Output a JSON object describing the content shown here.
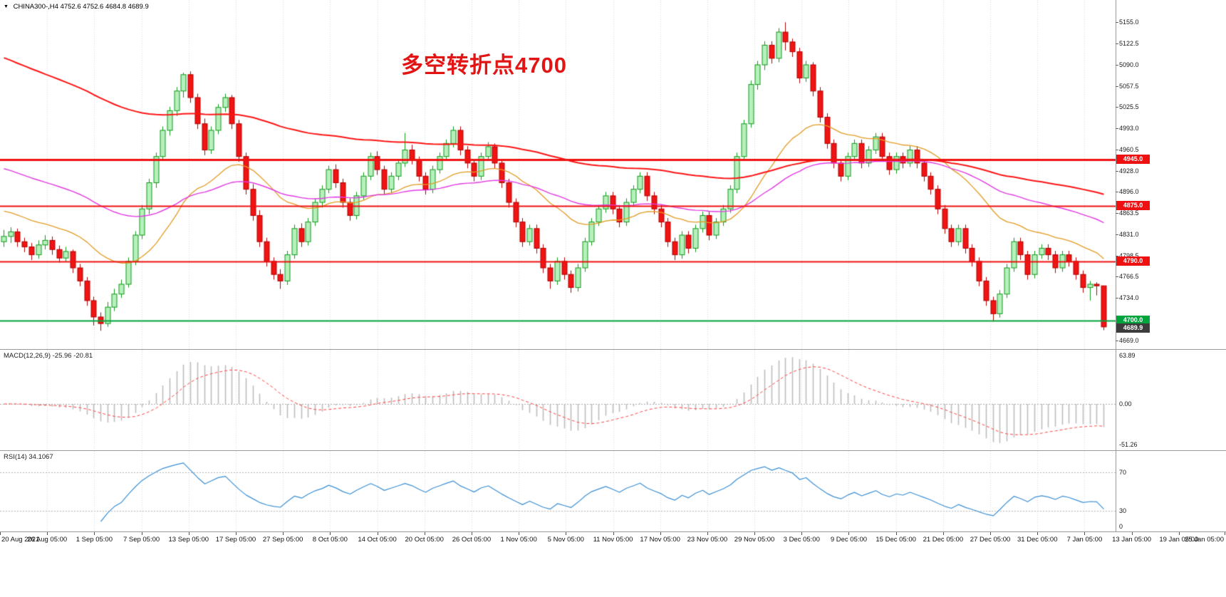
{
  "header": {
    "dropdown_icon": "▼",
    "symbol": "CHINA300-,H4",
    "ohlc": "4752.6 4752.6 4684.8 4689.9"
  },
  "annotation": {
    "text": "多空转折点4700",
    "color": "#e21414"
  },
  "colors": {
    "bull_fill": "#b6f0bd",
    "bull_border": "#0f9918",
    "bear_fill": "#f01414",
    "bear_border": "#b00000",
    "grid": "#d9d9d9",
    "macd_hist": "#bdbdbd",
    "macd_signal": "#ff4040",
    "rsi_line": "#3b8fd4",
    "badge_current_bg": "#3c3c3c"
  },
  "macd": {
    "label": "MACD(12,26,9) -25.96 -20.81",
    "value": -25.96,
    "signal_value": -20.81,
    "fast": 12,
    "slow": 26,
    "signal": 9,
    "levels": [
      "63.89",
      "0.00",
      "-51.26"
    ]
  },
  "rsi": {
    "label": "RSI(14) 34.1067",
    "value": 34.1067,
    "period": 14,
    "levels": [
      "70",
      "30",
      "0"
    ]
  },
  "chart_data": {
    "type": "candlestick",
    "symbol": "CHINA300-",
    "timeframe": "H4",
    "title": "多空转折点4700",
    "ylim": [
      4656,
      5189
    ],
    "y_ticks": [
      "5155.0",
      "5122.5",
      "5090.0",
      "5057.5",
      "5025.5",
      "4993.0",
      "4960.5",
      "4928.0",
      "4896.0",
      "4863.5",
      "4831.0",
      "4798.5",
      "4766.5",
      "4734.0",
      "4669.0"
    ],
    "x_labels": [
      "20 Aug 2021",
      "26 Aug 05:00",
      "1 Sep 05:00",
      "7 Sep 05:00",
      "13 Sep 05:00",
      "17 Sep 05:00",
      "27 Sep 05:00",
      "8 Oct 05:00",
      "14 Oct 05:00",
      "20 Oct 05:00",
      "26 Oct 05:00",
      "1 Nov 05:00",
      "5 Nov 05:00",
      "11 Nov 05:00",
      "17 Nov 05:00",
      "23 Nov 05:00",
      "29 Nov 05:00",
      "3 Dec 05:00",
      "9 Dec 05:00",
      "15 Dec 05:00",
      "21 Dec 05:00",
      "27 Dec 05:00",
      "31 Dec 05:00",
      "7 Jan 05:00",
      "13 Jan 05:00",
      "19 Jan 05:00",
      "25 Jan 05:00"
    ],
    "current": {
      "label": "4689.9",
      "value": 4689.9
    },
    "last_candle": {
      "open": 4752.6,
      "high": 4752.6,
      "low": 4684.8,
      "close": 4689.9
    },
    "hlines": [
      {
        "price": 4945.0,
        "label": "4945.0",
        "color": "#ee1111",
        "width": 3
      },
      {
        "price": 4875.0,
        "label": "4875.0",
        "color": "#ee1111",
        "width": 2
      },
      {
        "price": 4790.0,
        "label": "4790.0",
        "color": "#ee1111",
        "width": 2
      },
      {
        "price": 4700.0,
        "label": "4700.0",
        "color": "#00a43c",
        "width": 2
      }
    ],
    "overlays": [
      {
        "name": "ma-fast",
        "color": "#e39b23",
        "period": 24,
        "seed": 4870,
        "width": 1.3
      },
      {
        "name": "ma-mid",
        "color": "#e23ae2",
        "period": 60,
        "seed": 4935,
        "width": 1.4
      },
      {
        "name": "ma-slow",
        "color": "#ff1414",
        "period": 130,
        "seed": 5105,
        "width": 2
      }
    ],
    "candles": [
      [
        4820,
        4838,
        4812,
        4828
      ],
      [
        4828,
        4842,
        4818,
        4835
      ],
      [
        4835,
        4840,
        4812,
        4820
      ],
      [
        4820,
        4826,
        4804,
        4812
      ],
      [
        4812,
        4818,
        4792,
        4800
      ],
      [
        4800,
        4822,
        4794,
        4815
      ],
      [
        4815,
        4830,
        4808,
        4822
      ],
      [
        4822,
        4828,
        4800,
        4808
      ],
      [
        4808,
        4814,
        4788,
        4795
      ],
      [
        4795,
        4812,
        4789,
        4805
      ],
      [
        4805,
        4808,
        4772,
        4780
      ],
      [
        4780,
        4786,
        4752,
        4760
      ],
      [
        4760,
        4766,
        4722,
        4730
      ],
      [
        4730,
        4736,
        4692,
        4705
      ],
      [
        4705,
        4712,
        4684,
        4695
      ],
      [
        4695,
        4728,
        4690,
        4720
      ],
      [
        4720,
        4748,
        4714,
        4740
      ],
      [
        4740,
        4762,
        4734,
        4755
      ],
      [
        4755,
        4796,
        4750,
        4790
      ],
      [
        4790,
        4836,
        4784,
        4830
      ],
      [
        4830,
        4876,
        4824,
        4870
      ],
      [
        4870,
        4916,
        4862,
        4910
      ],
      [
        4910,
        4956,
        4902,
        4950
      ],
      [
        4950,
        4996,
        4944,
        4990
      ],
      [
        4990,
        5026,
        4982,
        5020
      ],
      [
        5020,
        5056,
        5012,
        5050
      ],
      [
        5050,
        5078,
        5040,
        5075
      ],
      [
        5075,
        5080,
        5032,
        5040
      ],
      [
        5040,
        5046,
        4992,
        5000
      ],
      [
        5000,
        5008,
        4952,
        4960
      ],
      [
        4960,
        4996,
        4954,
        4990
      ],
      [
        4990,
        5030,
        4984,
        5025
      ],
      [
        5025,
        5046,
        5018,
        5040
      ],
      [
        5040,
        5044,
        4992,
        5000
      ],
      [
        5000,
        5006,
        4942,
        4950
      ],
      [
        4950,
        4956,
        4892,
        4900
      ],
      [
        4900,
        4908,
        4852,
        4860
      ],
      [
        4860,
        4868,
        4812,
        4820
      ],
      [
        4820,
        4826,
        4782,
        4790
      ],
      [
        4790,
        4796,
        4762,
        4770
      ],
      [
        4770,
        4778,
        4748,
        4760
      ],
      [
        4760,
        4806,
        4754,
        4800
      ],
      [
        4800,
        4846,
        4794,
        4840
      ],
      [
        4840,
        4848,
        4812,
        4820
      ],
      [
        4820,
        4856,
        4814,
        4850
      ],
      [
        4850,
        4886,
        4844,
        4880
      ],
      [
        4880,
        4906,
        4872,
        4900
      ],
      [
        4900,
        4936,
        4894,
        4930
      ],
      [
        4930,
        4938,
        4902,
        4910
      ],
      [
        4910,
        4916,
        4872,
        4880
      ],
      [
        4880,
        4886,
        4852,
        4860
      ],
      [
        4860,
        4896,
        4854,
        4890
      ],
      [
        4890,
        4926,
        4884,
        4920
      ],
      [
        4920,
        4956,
        4914,
        4950
      ],
      [
        4950,
        4958,
        4922,
        4930
      ],
      [
        4930,
        4936,
        4892,
        4900
      ],
      [
        4900,
        4926,
        4894,
        4920
      ],
      [
        4920,
        4946,
        4914,
        4940
      ],
      [
        4940,
        4986,
        4934,
        4960
      ],
      [
        4960,
        4968,
        4938,
        4945
      ],
      [
        4945,
        4950,
        4912,
        4920
      ],
      [
        4920,
        4926,
        4892,
        4900
      ],
      [
        4900,
        4936,
        4894,
        4930
      ],
      [
        4930,
        4956,
        4924,
        4950
      ],
      [
        4950,
        4976,
        4944,
        4970
      ],
      [
        4970,
        4996,
        4964,
        4990
      ],
      [
        4990,
        4996,
        4952,
        4960
      ],
      [
        4960,
        4966,
        4932,
        4940
      ],
      [
        4940,
        4946,
        4912,
        4920
      ],
      [
        4920,
        4956,
        4914,
        4950
      ],
      [
        4950,
        4972,
        4944,
        4965
      ],
      [
        4965,
        4970,
        4932,
        4940
      ],
      [
        4940,
        4946,
        4902,
        4910
      ],
      [
        4910,
        4916,
        4872,
        4880
      ],
      [
        4880,
        4886,
        4842,
        4850
      ],
      [
        4850,
        4856,
        4812,
        4820
      ],
      [
        4820,
        4846,
        4814,
        4840
      ],
      [
        4840,
        4846,
        4802,
        4810
      ],
      [
        4810,
        4816,
        4772,
        4780
      ],
      [
        4780,
        4786,
        4748,
        4760
      ],
      [
        4760,
        4796,
        4754,
        4790
      ],
      [
        4790,
        4796,
        4762,
        4770
      ],
      [
        4770,
        4776,
        4742,
        4750
      ],
      [
        4750,
        4786,
        4744,
        4780
      ],
      [
        4780,
        4826,
        4774,
        4820
      ],
      [
        4820,
        4856,
        4814,
        4850
      ],
      [
        4850,
        4876,
        4844,
        4870
      ],
      [
        4870,
        4896,
        4864,
        4890
      ],
      [
        4890,
        4896,
        4862,
        4870
      ],
      [
        4870,
        4876,
        4842,
        4850
      ],
      [
        4850,
        4886,
        4844,
        4880
      ],
      [
        4880,
        4906,
        4874,
        4900
      ],
      [
        4900,
        4926,
        4894,
        4920
      ],
      [
        4920,
        4926,
        4882,
        4890
      ],
      [
        4890,
        4896,
        4862,
        4870
      ],
      [
        4870,
        4876,
        4842,
        4850
      ],
      [
        4850,
        4856,
        4812,
        4820
      ],
      [
        4820,
        4826,
        4792,
        4800
      ],
      [
        4800,
        4836,
        4794,
        4830
      ],
      [
        4830,
        4836,
        4802,
        4810
      ],
      [
        4810,
        4846,
        4804,
        4840
      ],
      [
        4840,
        4866,
        4834,
        4860
      ],
      [
        4860,
        4866,
        4822,
        4830
      ],
      [
        4830,
        4856,
        4824,
        4850
      ],
      [
        4850,
        4876,
        4844,
        4870
      ],
      [
        4870,
        4906,
        4864,
        4900
      ],
      [
        4900,
        4956,
        4894,
        4950
      ],
      [
        4950,
        5006,
        4944,
        5000
      ],
      [
        5000,
        5066,
        4994,
        5060
      ],
      [
        5060,
        5096,
        5052,
        5090
      ],
      [
        5090,
        5126,
        5082,
        5120
      ],
      [
        5120,
        5126,
        5092,
        5100
      ],
      [
        5100,
        5146,
        5094,
        5140
      ],
      [
        5140,
        5155,
        5112,
        5125
      ],
      [
        5125,
        5130,
        5102,
        5110
      ],
      [
        5110,
        5116,
        5062,
        5070
      ],
      [
        5070,
        5096,
        5064,
        5090
      ],
      [
        5090,
        5094,
        5042,
        5050
      ],
      [
        5050,
        5056,
        5002,
        5010
      ],
      [
        5010,
        5016,
        4962,
        4970
      ],
      [
        4970,
        4976,
        4932,
        4940
      ],
      [
        4940,
        4946,
        4912,
        4920
      ],
      [
        4920,
        4956,
        4914,
        4950
      ],
      [
        4950,
        4976,
        4944,
        4970
      ],
      [
        4970,
        4976,
        4932,
        4940
      ],
      [
        4940,
        4966,
        4934,
        4960
      ],
      [
        4960,
        4986,
        4954,
        4980
      ],
      [
        4980,
        4986,
        4942,
        4950
      ],
      [
        4950,
        4956,
        4922,
        4930
      ],
      [
        4930,
        4956,
        4924,
        4950
      ],
      [
        4950,
        4956,
        4932,
        4940
      ],
      [
        4940,
        4966,
        4934,
        4960
      ],
      [
        4960,
        4966,
        4932,
        4940
      ],
      [
        4940,
        4946,
        4912,
        4920
      ],
      [
        4920,
        4926,
        4892,
        4900
      ],
      [
        4900,
        4906,
        4862,
        4870
      ],
      [
        4870,
        4876,
        4832,
        4840
      ],
      [
        4840,
        4846,
        4812,
        4820
      ],
      [
        4820,
        4846,
        4814,
        4840
      ],
      [
        4840,
        4846,
        4802,
        4810
      ],
      [
        4810,
        4816,
        4782,
        4790
      ],
      [
        4790,
        4796,
        4752,
        4760
      ],
      [
        4760,
        4766,
        4722,
        4730
      ],
      [
        4730,
        4736,
        4698,
        4710
      ],
      [
        4710,
        4746,
        4704,
        4740
      ],
      [
        4740,
        4786,
        4734,
        4780
      ],
      [
        4780,
        4826,
        4774,
        4820
      ],
      [
        4820,
        4826,
        4792,
        4800
      ],
      [
        4800,
        4806,
        4762,
        4770
      ],
      [
        4770,
        4806,
        4764,
        4800
      ],
      [
        4800,
        4816,
        4794,
        4810
      ],
      [
        4810,
        4816,
        4792,
        4800
      ],
      [
        4800,
        4806,
        4772,
        4780
      ],
      [
        4780,
        4806,
        4774,
        4800
      ],
      [
        4800,
        4806,
        4782,
        4790
      ],
      [
        4790,
        4796,
        4762,
        4770
      ],
      [
        4770,
        4776,
        4742,
        4750
      ],
      [
        4750,
        4760,
        4730,
        4755
      ],
      [
        4755,
        4758,
        4738,
        4752.6
      ],
      [
        4752.6,
        4752.6,
        4684.8,
        4689.9
      ]
    ]
  }
}
